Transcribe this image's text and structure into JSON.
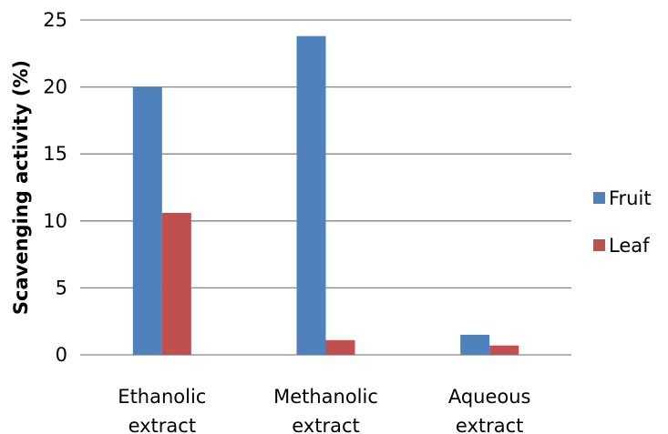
{
  "chart_data": {
    "type": "bar",
    "categories": [
      [
        "Ethanolic",
        "extract"
      ],
      [
        "Methanolic",
        "extract"
      ],
      [
        "Aqueous",
        "extract"
      ]
    ],
    "series": [
      {
        "name": "Fruit",
        "values": [
          20.0,
          23.8,
          1.5
        ],
        "color": "#4F81BD"
      },
      {
        "name": "Leaf",
        "values": [
          10.6,
          1.1,
          0.7
        ],
        "color": "#C0504D"
      }
    ],
    "xlabel": "",
    "ylabel": "Scavenging activity (%)",
    "ylim": [
      0,
      25
    ],
    "yticks": [
      0,
      5,
      10,
      15,
      20,
      25
    ],
    "grid": true,
    "legend_position": "right"
  }
}
